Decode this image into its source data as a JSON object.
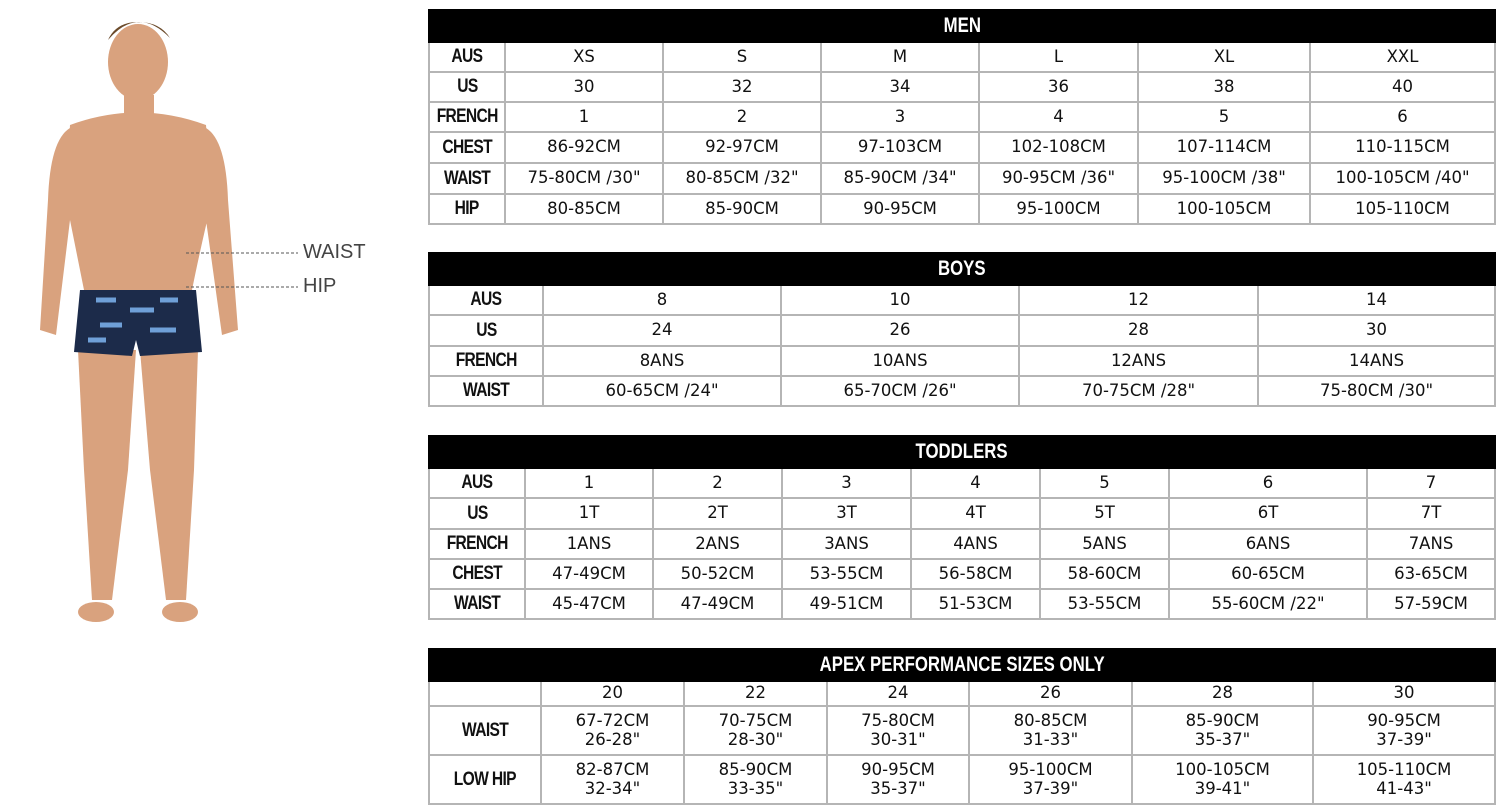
{
  "figure": {
    "waist_label": "WAIST",
    "hip_label": "HIP",
    "skin_color": "#d9a27e",
    "trunks_color": "#1c2b4a"
  },
  "tables": [
    {
      "id": "men",
      "title": "MEN",
      "rows": [
        {
          "label": "AUS",
          "cells": [
            "XS",
            "S",
            "M",
            "L",
            "XL",
            "XXL"
          ]
        },
        {
          "label": "US",
          "cells": [
            "30",
            "32",
            "34",
            "36",
            "38",
            "40"
          ]
        },
        {
          "label": "FRENCH",
          "cells": [
            "1",
            "2",
            "3",
            "4",
            "5",
            "6"
          ]
        },
        {
          "label": "CHEST",
          "cells": [
            "86-92CM",
            "92-97CM",
            "97-103CM",
            "102-108CM",
            "107-114CM",
            "110-115CM"
          ]
        },
        {
          "label": "WAIST",
          "cells": [
            "75-80CM /30\"",
            "80-85CM /32\"",
            "85-90CM /34\"",
            "90-95CM /36\"",
            "95-100CM /38\"",
            "100-105CM /40\""
          ]
        },
        {
          "label": "HIP",
          "cells": [
            "80-85CM",
            "85-90CM",
            "90-95CM",
            "95-100CM",
            "100-105CM",
            "105-110CM"
          ]
        }
      ]
    },
    {
      "id": "boys",
      "title": "BOYS",
      "rows": [
        {
          "label": "AUS",
          "cells": [
            "8",
            "10",
            "12",
            "14"
          ]
        },
        {
          "label": "US",
          "cells": [
            "24",
            "26",
            "28",
            "30"
          ]
        },
        {
          "label": "FRENCH",
          "cells": [
            "8ANS",
            "10ANS",
            "12ANS",
            "14ANS"
          ]
        },
        {
          "label": "WAIST",
          "cells": [
            "60-65CM /24\"",
            "65-70CM /26\"",
            "70-75CM /28\"",
            "75-80CM /30\""
          ]
        }
      ]
    },
    {
      "id": "toddlers",
      "title": "TODDLERS",
      "rows": [
        {
          "label": "AUS",
          "cells": [
            "1",
            "2",
            "3",
            "4",
            "5",
            "6",
            "7"
          ]
        },
        {
          "label": "US",
          "cells": [
            "1T",
            "2T",
            "3T",
            "4T",
            "5T",
            "6T",
            "7T"
          ]
        },
        {
          "label": "FRENCH",
          "cells": [
            "1ANS",
            "2ANS",
            "3ANS",
            "4ANS",
            "5ANS",
            "6ANS",
            "7ANS"
          ]
        },
        {
          "label": "CHEST",
          "cells": [
            "47-49CM",
            "50-52CM",
            "53-55CM",
            "56-58CM",
            "58-60CM",
            "60-65CM",
            "63-65CM"
          ]
        },
        {
          "label": "WAIST",
          "cells": [
            "45-47CM",
            "47-49CM",
            "49-51CM",
            "51-53CM",
            "53-55CM",
            "55-60CM /22\"",
            "57-59CM"
          ]
        }
      ]
    },
    {
      "id": "apex",
      "title": "APEX PERFORMANCE SIZES ONLY",
      "rows": [
        {
          "label": "",
          "cells": [
            "20",
            "22",
            "24",
            "26",
            "28",
            "30"
          ]
        },
        {
          "label": "WAIST",
          "cells": [
            "67-72CM\n26-28\"",
            "70-75CM\n28-30\"",
            "75-80CM\n30-31\"",
            "80-85CM\n31-33\"",
            "85-90CM\n35-37\"",
            "90-95CM\n37-39\""
          ]
        },
        {
          "label": "LOW HIP",
          "cells": [
            "82-87CM\n32-34\"",
            "85-90CM\n33-35\"",
            "90-95CM\n35-37\"",
            "95-100CM\n37-39\"",
            "100-105CM\n39-41\"",
            "105-110CM\n41-43\""
          ]
        }
      ]
    }
  ]
}
